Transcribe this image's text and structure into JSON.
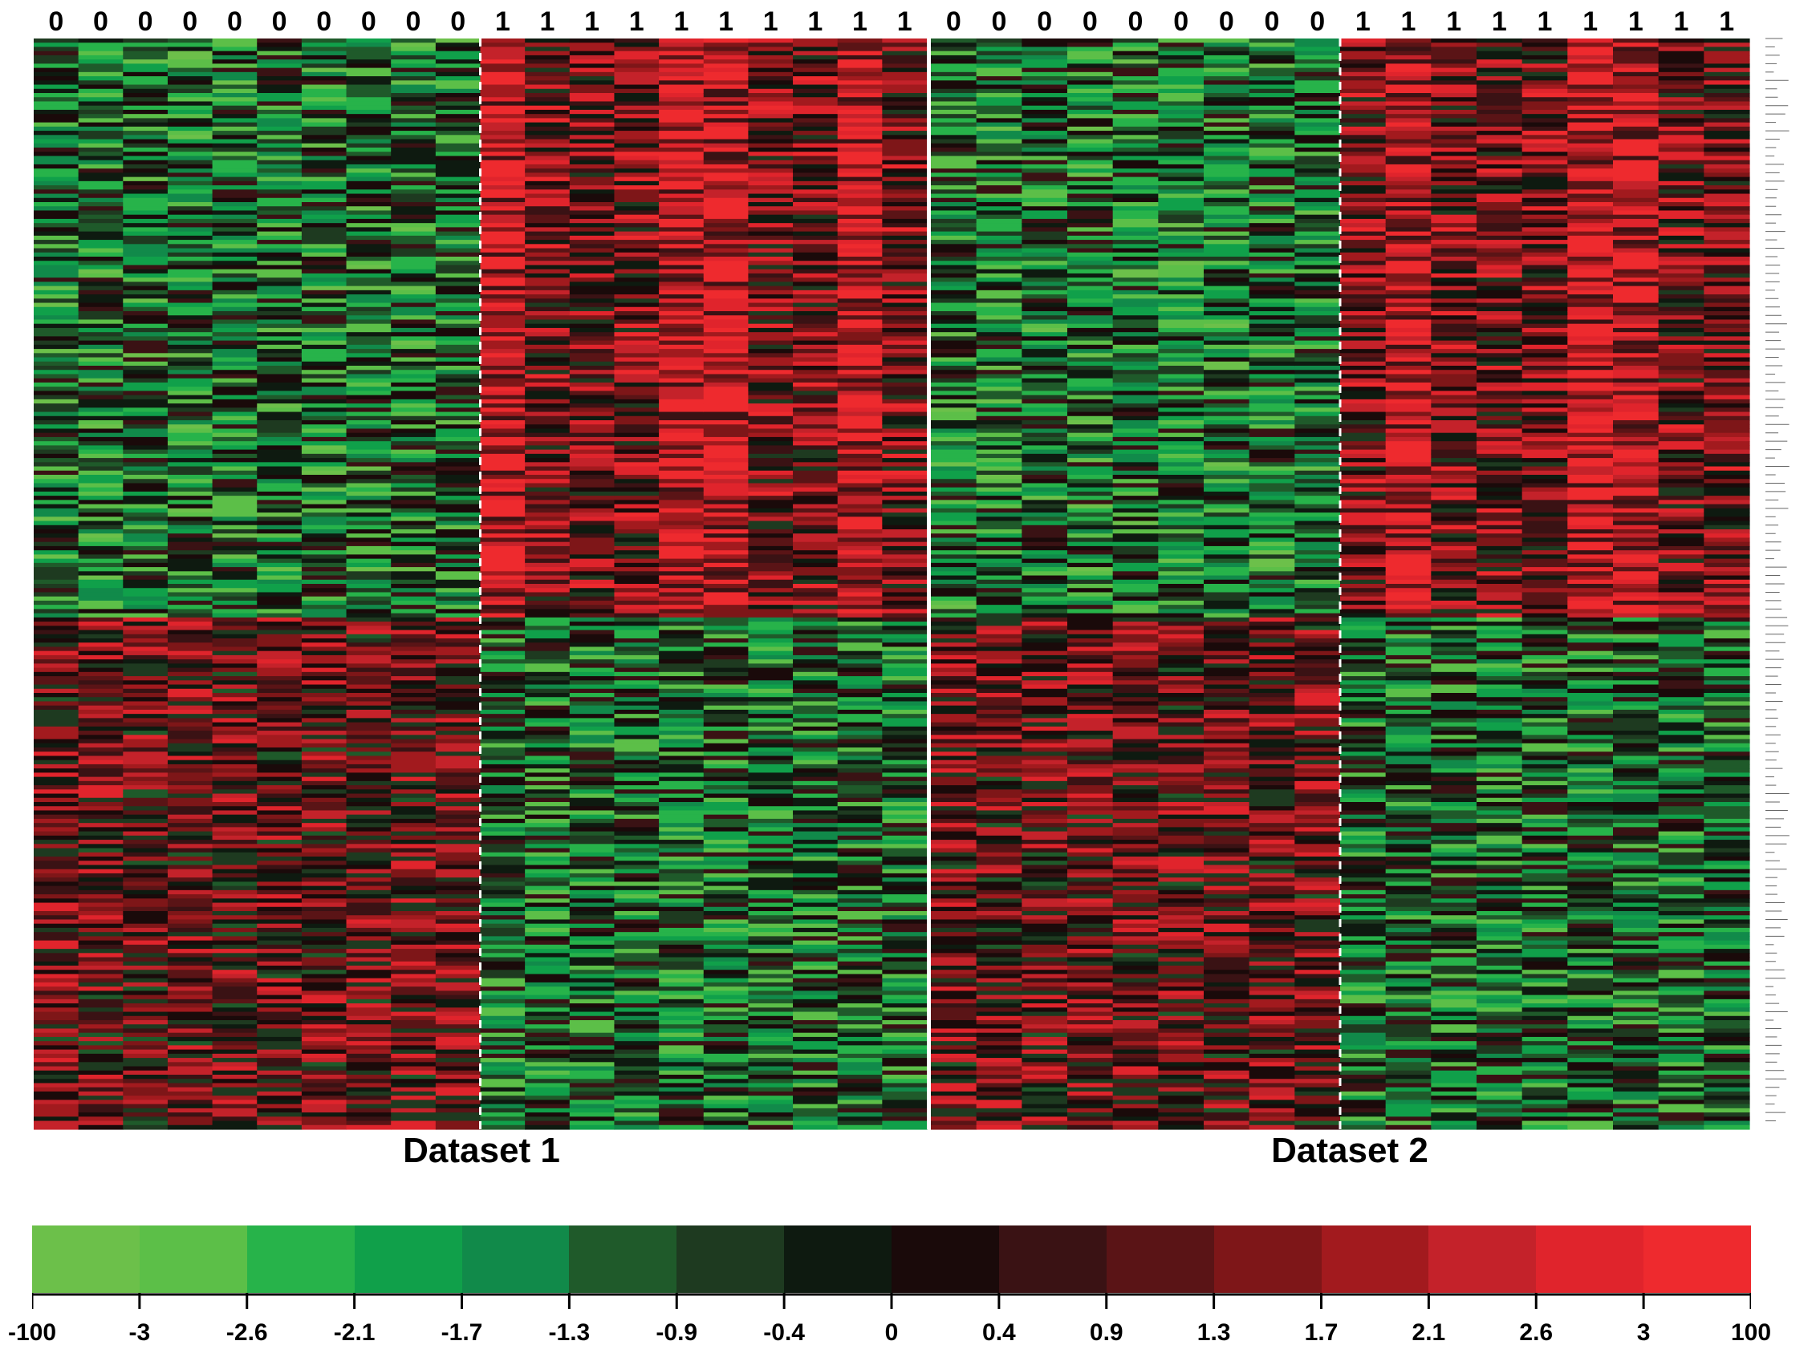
{
  "chart_data": {
    "type": "heatmap",
    "datasets": [
      {
        "title": "Dataset 1",
        "column_classes": [
          0,
          0,
          0,
          0,
          0,
          0,
          0,
          0,
          0,
          0,
          1,
          1,
          1,
          1,
          1,
          1,
          1,
          1,
          1,
          1
        ]
      },
      {
        "title": "Dataset 2",
        "column_classes": [
          0,
          0,
          0,
          0,
          0,
          0,
          0,
          0,
          0,
          1,
          1,
          1,
          1,
          1,
          1,
          1,
          1,
          1
        ]
      }
    ],
    "row_count": 260,
    "color_scale": {
      "colors": [
        "#6cc04a",
        "#5cbf48",
        "#27b34a",
        "#10a04a",
        "#118a4a",
        "#1f5a2a",
        "#1e3a20",
        "#0e1a10",
        "#1a0a0a",
        "#3a1214",
        "#5a1416",
        "#7e1618",
        "#a21a1e",
        "#c4222a",
        "#e0242c",
        "#ee2a2e"
      ],
      "tick_labels": [
        "-100",
        "-3",
        "-2.6",
        "-2.1",
        "-1.7",
        "-1.3",
        "-0.9",
        "-0.4",
        "0",
        "0.4",
        "0.9",
        "1.3",
        "1.7",
        "2.1",
        "2.6",
        "3",
        "100"
      ]
    },
    "pattern": "Dataset 1: class 0 rows upper block green, lower block red; class 1 upper block red, lower block green. Dataset 2: same pattern with class 0 upper green / lower red and class 1 upper red / lower green."
  }
}
